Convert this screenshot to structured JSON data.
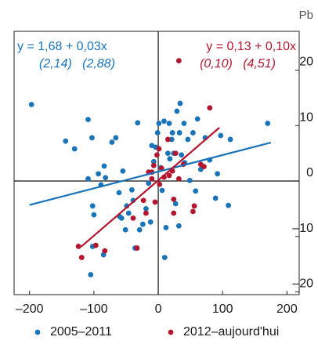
{
  "chart_data": {
    "type": "scatter",
    "unit": "Pb",
    "xlim": [
      -224,
      219
    ],
    "ylim": [
      -20.5,
      27
    ],
    "xticks": [
      {
        "value": -200,
        "label": "–200"
      },
      {
        "value": -100,
        "label": "–100"
      },
      0,
      100,
      200
    ],
    "yticks": [
      {
        "value": -20,
        "label": "–20"
      },
      {
        "value": -10,
        "label": "–10"
      },
      0,
      10,
      20
    ],
    "legend": "bottom",
    "series": [
      {
        "name": "2005–2011",
        "color": "#1a74b9",
        "x": [
          -197,
          -144,
          -130,
          -109,
          -109,
          -103,
          -102,
          -100,
          -93,
          -89,
          -85,
          -84,
          -82,
          -72,
          -66,
          -61,
          -60,
          -57,
          -55,
          -51,
          -49,
          -46,
          -41,
          -39,
          -36,
          -32,
          -29,
          -24,
          -19,
          -15,
          -12,
          -10,
          -7,
          -4,
          -1,
          1,
          4,
          6,
          9,
          10,
          12,
          15,
          17,
          18,
          21,
          22,
          24,
          27,
          29,
          32,
          33,
          34,
          36,
          40,
          41,
          46,
          49,
          54,
          58,
          61,
          66,
          73,
          80,
          89,
          92,
          97,
          109,
          112,
          170,
          -105,
          -102
        ],
        "y": [
          13.8,
          7.2,
          5.8,
          11.1,
          0.4,
          7.8,
          -4.5,
          -6.1,
          1.3,
          -0.7,
          -13.3,
          2.7,
          0.6,
          7.0,
          7.8,
          -2.1,
          -6.4,
          -6.7,
          1.8,
          -8.8,
          -4.5,
          -5.8,
          -1.6,
          -3.5,
          -12.1,
          10.5,
          -8.8,
          -7.8,
          -5.0,
          -0.4,
          -7.4,
          6.4,
          3.5,
          6.1,
          8.7,
          10.4,
          2.4,
          -1.7,
          10.8,
          -13.8,
          -8.4,
          5.0,
          10.4,
          4.0,
          7.5,
          8.7,
          5.0,
          -4.1,
          12.6,
          -8.1,
          8.7,
          14.0,
          4.7,
          10.4,
          3.3,
          7.5,
          0.1,
          8.7,
          -1.8,
          11.2,
          2.1,
          7.8,
          3.8,
          -3.1,
          1.3,
          8.2,
          -4.4,
          7.5,
          10.4,
          -16.9,
          -11.8
        ]
      },
      {
        "name": "2012–aujourd'hui",
        "color": "#b5162f",
        "x": [
          -124,
          -97,
          -83,
          -33,
          -39,
          -23,
          -19,
          -15,
          -10,
          -10,
          -7,
          -5,
          -2,
          1,
          2,
          5,
          9,
          15,
          17,
          22,
          24,
          27,
          32,
          39,
          54,
          56,
          66,
          71,
          80,
          32,
          24,
          -119
        ],
        "y": [
          -11.8,
          -11.6,
          -12.6,
          -12.1,
          -6.7,
          -3.5,
          -5.8,
          1.6,
          1.6,
          0.4,
          2.8,
          -3.8,
          4.7,
          5.8,
          -0.6,
          2.3,
          0.7,
          7.5,
          1.0,
          1.8,
          -5.8,
          5.0,
          0.4,
          3.0,
          -5.5,
          -4.5,
          3.0,
          2.6,
          13.2,
          21.7,
          -3.3,
          -13.8
        ]
      }
    ],
    "fits": [
      {
        "label": "y = 1,68 + 0,03x",
        "stats": "(2,14)   (2,88)",
        "intercept": 1.68,
        "slope": 0.03,
        "x_range": [
          -200,
          175
        ],
        "color": "#1a74b9"
      },
      {
        "label": "y = 0,13 + 0,10x",
        "stats": "(0,10)   (4,51)",
        "intercept": 0.13,
        "slope": 0.1,
        "x_range": [
          -120,
          95
        ],
        "color": "#b5162f"
      }
    ]
  }
}
